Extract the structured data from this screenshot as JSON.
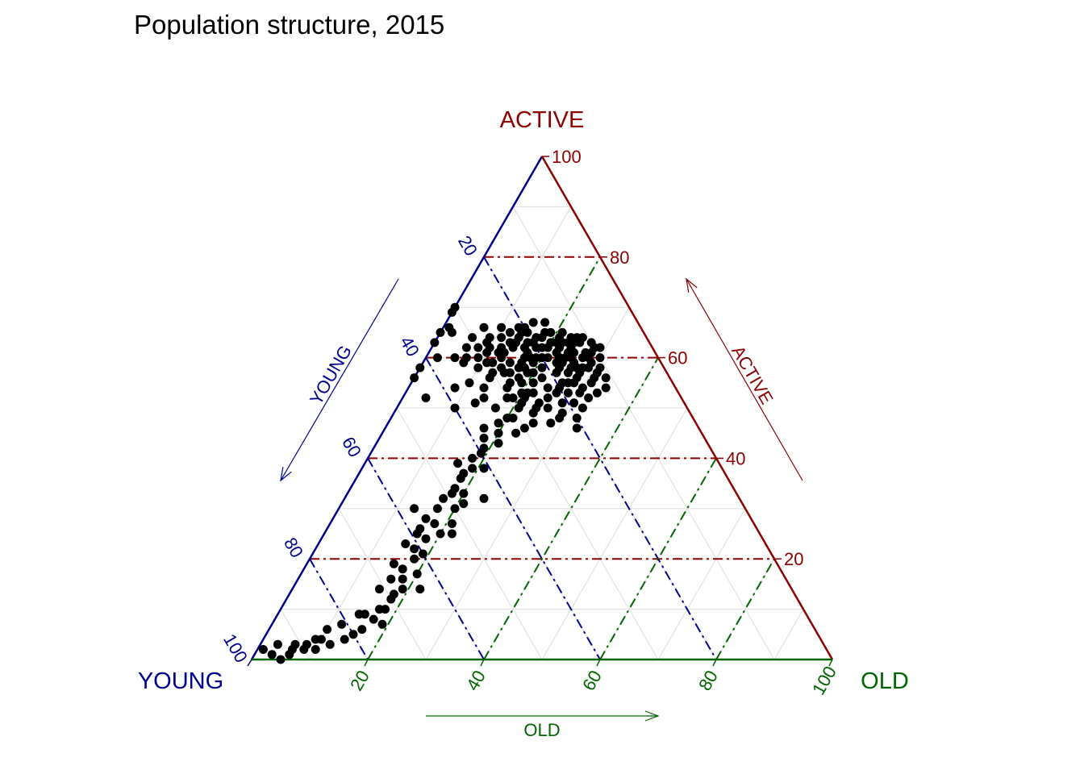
{
  "title": "Population structure, 2015",
  "colors": {
    "young": "#00008B",
    "active": "#8B0000",
    "old": "#006400",
    "grid": "#dddddd",
    "points": "#000000"
  },
  "chart_data": {
    "type": "ternary-scatter",
    "title": "Population structure, 2015",
    "axes": {
      "young": {
        "vertex_label": "YOUNG",
        "arrow_label": "YOUNG"
      },
      "active": {
        "vertex_label": "ACTIVE",
        "arrow_label": "ACTIVE"
      },
      "old": {
        "vertex_label": "OLD",
        "arrow_label": "OLD"
      }
    },
    "range": [
      0,
      100
    ],
    "minor_grid_step": 10,
    "reference_lines": [
      20,
      40,
      60,
      80
    ],
    "ticks": {
      "young": [
        "20",
        "40",
        "60",
        "80",
        "100"
      ],
      "active": [
        "20",
        "40",
        "60",
        "80",
        "100"
      ],
      "old": [
        "20",
        "40",
        "60",
        "80",
        "100"
      ]
    },
    "point_fields": [
      "young",
      "active",
      "old"
    ],
    "points": [
      [
        44,
        56,
        0
      ],
      [
        42,
        58,
        0
      ],
      [
        37,
        63,
        0
      ],
      [
        35,
        65,
        0
      ],
      [
        33,
        66,
        1
      ],
      [
        30,
        70,
        0
      ],
      [
        31,
        69,
        0
      ],
      [
        33,
        65,
        2
      ],
      [
        44,
        52,
        4
      ],
      [
        38,
        60,
        2
      ],
      [
        35,
        60,
        5
      ],
      [
        28,
        62,
        10
      ],
      [
        30,
        59,
        11
      ],
      [
        27,
        60,
        13
      ],
      [
        23,
        63,
        14
      ],
      [
        21,
        66,
        13
      ],
      [
        20,
        65,
        15
      ],
      [
        22,
        61,
        17
      ],
      [
        28,
        58,
        14
      ],
      [
        27,
        57,
        16
      ],
      [
        22,
        60,
        18
      ],
      [
        19,
        62,
        19
      ],
      [
        18,
        64,
        18
      ],
      [
        16,
        65,
        19
      ],
      [
        15,
        63,
        22
      ],
      [
        17,
        61,
        22
      ],
      [
        22,
        59,
        19
      ],
      [
        21,
        58,
        21
      ],
      [
        18,
        59,
        23
      ],
      [
        14,
        61,
        25
      ],
      [
        17,
        57,
        26
      ],
      [
        15,
        58,
        27
      ],
      [
        24,
        58,
        18
      ],
      [
        22,
        56,
        22
      ],
      [
        14,
        62,
        24
      ],
      [
        13,
        63,
        24
      ],
      [
        15,
        60,
        25
      ],
      [
        18,
        55,
        27
      ],
      [
        12,
        60,
        28
      ],
      [
        28,
        55,
        17
      ],
      [
        26,
        55,
        19
      ],
      [
        20,
        54,
        26
      ],
      [
        25,
        53,
        22
      ],
      [
        24,
        57,
        19
      ],
      [
        19,
        57,
        24
      ],
      [
        16,
        56,
        28
      ],
      [
        23,
        60,
        17
      ],
      [
        20,
        60,
        20
      ],
      [
        17,
        59,
        24
      ],
      [
        14,
        58,
        28
      ],
      [
        12,
        61,
        27
      ],
      [
        12,
        59,
        29
      ],
      [
        18,
        62,
        20
      ],
      [
        20,
        62,
        18
      ],
      [
        19,
        60,
        21
      ],
      [
        15,
        61,
        24
      ],
      [
        16,
        62,
        22
      ],
      [
        15,
        64,
        21
      ],
      [
        13,
        64,
        23
      ],
      [
        21,
        63,
        16
      ],
      [
        17,
        63,
        20
      ],
      [
        11,
        64,
        25
      ],
      [
        16,
        60,
        24
      ],
      [
        26,
        61,
        13
      ],
      [
        24,
        59,
        17
      ],
      [
        16,
        58,
        26
      ],
      [
        26,
        53,
        21
      ],
      [
        30,
        52,
        18
      ],
      [
        33,
        50,
        17
      ],
      [
        34,
        52,
        14
      ],
      [
        29,
        52,
        19
      ],
      [
        27,
        53,
        20
      ],
      [
        20,
        48,
        32
      ],
      [
        25,
        47,
        28
      ],
      [
        28,
        47,
        25
      ],
      [
        30,
        46,
        24
      ],
      [
        32,
        45,
        23
      ],
      [
        35,
        45,
        20
      ],
      [
        38,
        44,
        18
      ],
      [
        40,
        41,
        19
      ],
      [
        42,
        40,
        18
      ],
      [
        41,
        38,
        21
      ],
      [
        45,
        37,
        18
      ],
      [
        46,
        36,
        18
      ],
      [
        48,
        34,
        18
      ],
      [
        47,
        33,
        20
      ],
      [
        44,
        32,
        24
      ],
      [
        50,
        30,
        20
      ],
      [
        52,
        27,
        21
      ],
      [
        55,
        25,
        20
      ],
      [
        53,
        25,
        22
      ],
      [
        58,
        24,
        18
      ],
      [
        60,
        21,
        19
      ],
      [
        62,
        20,
        18
      ],
      [
        65,
        18,
        17
      ],
      [
        63,
        17,
        20
      ],
      [
        66,
        16,
        18
      ],
      [
        67,
        14,
        19
      ],
      [
        64,
        14,
        22
      ],
      [
        70,
        12,
        18
      ],
      [
        72,
        10,
        18
      ],
      [
        75,
        8,
        17
      ],
      [
        74,
        7,
        19
      ],
      [
        78,
        6,
        16
      ],
      [
        80,
        5,
        15
      ],
      [
        85,
        3,
        12
      ],
      [
        88,
        2,
        10
      ],
      [
        90,
        2,
        8
      ],
      [
        93,
        1,
        6
      ],
      [
        95,
        0,
        5
      ],
      [
        96,
        1,
        3
      ],
      [
        97,
        2,
        1
      ],
      [
        91,
        3,
        6
      ],
      [
        86,
        4,
        10
      ],
      [
        82,
        4,
        14
      ],
      [
        76,
        9,
        15
      ],
      [
        73,
        10,
        17
      ],
      [
        69,
        13,
        18
      ],
      [
        61,
        22,
        17
      ],
      [
        58,
        26,
        16
      ],
      [
        56,
        28,
        16
      ],
      [
        51,
        32,
        17
      ],
      [
        49,
        33,
        18
      ],
      [
        43,
        38,
        19
      ],
      [
        39,
        42,
        19
      ],
      [
        36,
        43,
        21
      ],
      [
        34,
        47,
        19
      ],
      [
        31,
        48,
        21
      ],
      [
        27,
        49,
        24
      ],
      [
        25,
        51,
        24
      ],
      [
        23,
        52,
        25
      ],
      [
        22,
        49,
        29
      ],
      [
        19,
        51,
        30
      ],
      [
        17,
        53,
        30
      ],
      [
        21,
        51,
        28
      ],
      [
        29,
        50,
        21
      ],
      [
        32,
        48,
        20
      ],
      [
        37,
        46,
        17
      ],
      [
        45,
        39,
        16
      ],
      [
        48,
        31,
        21
      ],
      [
        53,
        30,
        17
      ],
      [
        55,
        27,
        18
      ],
      [
        57,
        30,
        13
      ],
      [
        59,
        25,
        16
      ],
      [
        62,
        23,
        15
      ],
      [
        66,
        19,
        15
      ],
      [
        71,
        14,
        15
      ],
      [
        68,
        16,
        16
      ],
      [
        77,
        9,
        14
      ],
      [
        81,
        7,
        12
      ],
      [
        84,
        6,
        10
      ],
      [
        87,
        4,
        9
      ],
      [
        89,
        3,
        8
      ],
      [
        92,
        2,
        6
      ],
      [
        94,
        3,
        3
      ],
      [
        26,
        59,
        15
      ],
      [
        24,
        62,
        14
      ],
      [
        22,
        64,
        14
      ],
      [
        20,
        66,
        14
      ],
      [
        18,
        67,
        15
      ],
      [
        16,
        67,
        17
      ],
      [
        19,
        55,
        26
      ],
      [
        17,
        55,
        28
      ],
      [
        13,
        56,
        31
      ],
      [
        12,
        57,
        31
      ],
      [
        14,
        55,
        31
      ],
      [
        11,
        58,
        31
      ],
      [
        11,
        56,
        33
      ],
      [
        13,
        58,
        29
      ],
      [
        10,
        60,
        30
      ],
      [
        10,
        62,
        28
      ],
      [
        9,
        62,
        29
      ],
      [
        12,
        63,
        25
      ],
      [
        14,
        65,
        21
      ],
      [
        17,
        65,
        18
      ],
      [
        23,
        65,
        12
      ],
      [
        25,
        64,
        11
      ],
      [
        28,
        63,
        9
      ],
      [
        27,
        64,
        9
      ],
      [
        30,
        62,
        8
      ],
      [
        29,
        61,
        10
      ],
      [
        31,
        60,
        9
      ],
      [
        33,
        60,
        7
      ],
      [
        26,
        62,
        12
      ],
      [
        24,
        63,
        13
      ],
      [
        22,
        62,
        16
      ],
      [
        21,
        60,
        19
      ],
      [
        18,
        58,
        24
      ],
      [
        16,
        54,
        30
      ],
      [
        19,
        53,
        28
      ],
      [
        22,
        54,
        24
      ],
      [
        24,
        55,
        21
      ],
      [
        26,
        56,
        18
      ],
      [
        28,
        57,
        15
      ],
      [
        30,
        57,
        13
      ],
      [
        31,
        56,
        13
      ],
      [
        29,
        54,
        17
      ],
      [
        27,
        52,
        21
      ],
      [
        24,
        50,
        26
      ],
      [
        21,
        53,
        26
      ],
      [
        15,
        59,
        26
      ],
      [
        13,
        60,
        27
      ],
      [
        11,
        61,
        28
      ],
      [
        10,
        63,
        27
      ],
      [
        12,
        64,
        24
      ],
      [
        14,
        63,
        23
      ],
      [
        16,
        63,
        21
      ],
      [
        20,
        63,
        17
      ],
      [
        22,
        60,
        18
      ],
      [
        23,
        57,
        20
      ],
      [
        25,
        58,
        17
      ],
      [
        27,
        61,
        12
      ],
      [
        30,
        64,
        6
      ],
      [
        32,
        62,
        6
      ],
      [
        34,
        59,
        7
      ],
      [
        38,
        54,
        8
      ],
      [
        33,
        54,
        13
      ],
      [
        35,
        55,
        10
      ],
      [
        40,
        50,
        10
      ],
      [
        36,
        51,
        13
      ],
      [
        28,
        51,
        21
      ],
      [
        26,
        50,
        24
      ],
      [
        23,
        48,
        29
      ],
      [
        21,
        46,
        33
      ],
      [
        18,
        50,
        32
      ],
      [
        16,
        52,
        32
      ],
      [
        14,
        53,
        33
      ],
      [
        15,
        57,
        28
      ],
      [
        12,
        54,
        34
      ],
      [
        17,
        60,
        23
      ],
      [
        19,
        64,
        17
      ],
      [
        21,
        65,
        14
      ],
      [
        24,
        66,
        10
      ],
      [
        27,
        66,
        7
      ],
      [
        29,
        59,
        12
      ],
      [
        32,
        58,
        10
      ]
    ]
  }
}
